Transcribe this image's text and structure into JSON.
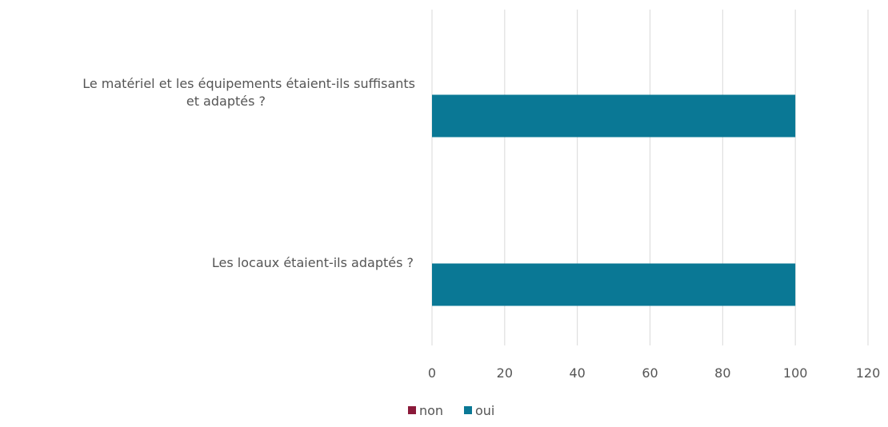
{
  "chart_data": {
    "type": "bar",
    "orientation": "horizontal",
    "categories": [
      [
        "Le matériel et les équipements étaient-ils suffisants",
        "et adaptés ?"
      ],
      [
        "Les locaux étaient-ils adaptés ?"
      ]
    ],
    "series": [
      {
        "name": "non",
        "color": "#8b1a3a",
        "values": [
          0,
          0
        ]
      },
      {
        "name": "oui",
        "color": "#0a7895",
        "values": [
          100,
          100
        ]
      }
    ],
    "xlim": [
      0,
      120
    ],
    "xticks": [
      0,
      20,
      40,
      60,
      80,
      100,
      120
    ],
    "grid": true,
    "legend": "bottom-center"
  }
}
